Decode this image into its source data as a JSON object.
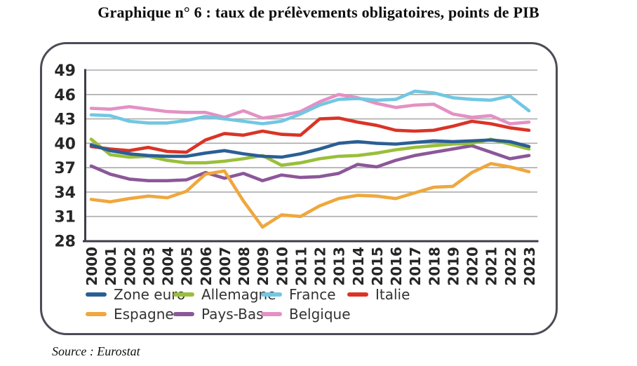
{
  "title": "Graphique n° 6 : taux de prélèvements obligatoires, points de PIB",
  "source_note": "Source : Eurostat",
  "chart_data": {
    "type": "line",
    "title": "Graphique n° 6 : taux de prélèvements obligatoires, points de PIB",
    "xlabel": "",
    "ylabel": "",
    "x": [
      "2000",
      "2001",
      "2002",
      "2003",
      "2004",
      "2005",
      "2006",
      "2007",
      "2008",
      "2009",
      "2010",
      "2011",
      "2012",
      "2013",
      "2014",
      "2015",
      "2016",
      "2017",
      "2018",
      "2019",
      "2020",
      "2021",
      "2022",
      "2023"
    ],
    "ylim": [
      28,
      49
    ],
    "yticks": [
      49,
      46,
      43,
      40,
      37,
      34,
      31,
      28
    ],
    "grid": true,
    "legend": {
      "position": "bottom-inside",
      "columns": 4,
      "rows": 2
    },
    "series": [
      {
        "name": "Zone euro",
        "color": "#2b5f94",
        "values": [
          39.8,
          39.1,
          38.7,
          38.5,
          38.4,
          38.4,
          38.8,
          39.1,
          38.7,
          38.4,
          38.3,
          38.7,
          39.3,
          40.0,
          40.2,
          40.0,
          39.9,
          40.1,
          40.3,
          40.2,
          40.3,
          40.4,
          40.2,
          39.6
        ]
      },
      {
        "name": "Allemagne",
        "color": "#99bf3a",
        "values": [
          40.5,
          38.6,
          38.3,
          38.4,
          37.9,
          37.6,
          37.6,
          37.8,
          38.1,
          38.5,
          37.3,
          37.6,
          38.1,
          38.4,
          38.5,
          38.8,
          39.2,
          39.5,
          39.7,
          39.9,
          40.0,
          40.5,
          39.9,
          39.3
        ]
      },
      {
        "name": "France",
        "color": "#72c7e2",
        "values": [
          43.5,
          43.4,
          42.7,
          42.5,
          42.5,
          42.8,
          43.3,
          43.0,
          42.7,
          42.4,
          42.7,
          43.6,
          44.7,
          45.4,
          45.5,
          45.3,
          45.4,
          46.4,
          46.2,
          45.6,
          45.4,
          45.3,
          45.8,
          44.0
        ]
      },
      {
        "name": "Italie",
        "color": "#d93427",
        "values": [
          39.6,
          39.3,
          39.1,
          39.5,
          39.0,
          38.9,
          40.4,
          41.2,
          41.0,
          41.5,
          41.1,
          41.0,
          43.0,
          43.1,
          42.6,
          42.2,
          41.6,
          41.5,
          41.6,
          42.1,
          42.7,
          42.4,
          41.9,
          41.6
        ]
      },
      {
        "name": "Espagne",
        "color": "#efa73d",
        "values": [
          33.1,
          32.8,
          33.2,
          33.5,
          33.3,
          34.1,
          36.2,
          36.6,
          32.9,
          29.7,
          31.2,
          31.0,
          32.3,
          33.2,
          33.6,
          33.5,
          33.2,
          33.9,
          34.6,
          34.7,
          36.4,
          37.5,
          37.1,
          36.5
        ]
      },
      {
        "name": "Pays-Bas",
        "color": "#8c5799",
        "values": [
          37.2,
          36.2,
          35.6,
          35.4,
          35.4,
          35.5,
          36.4,
          35.7,
          36.3,
          35.4,
          36.1,
          35.8,
          35.9,
          36.3,
          37.4,
          37.1,
          37.9,
          38.5,
          38.9,
          39.3,
          39.7,
          38.9,
          38.1,
          38.5
        ]
      },
      {
        "name": "Belgique",
        "color": "#e391c3",
        "values": [
          44.3,
          44.2,
          44.5,
          44.2,
          43.9,
          43.8,
          43.8,
          43.2,
          44.0,
          43.1,
          43.4,
          43.9,
          45.1,
          46.0,
          45.6,
          44.9,
          44.4,
          44.7,
          44.8,
          43.6,
          43.2,
          43.4,
          42.4,
          42.6
        ]
      }
    ]
  }
}
